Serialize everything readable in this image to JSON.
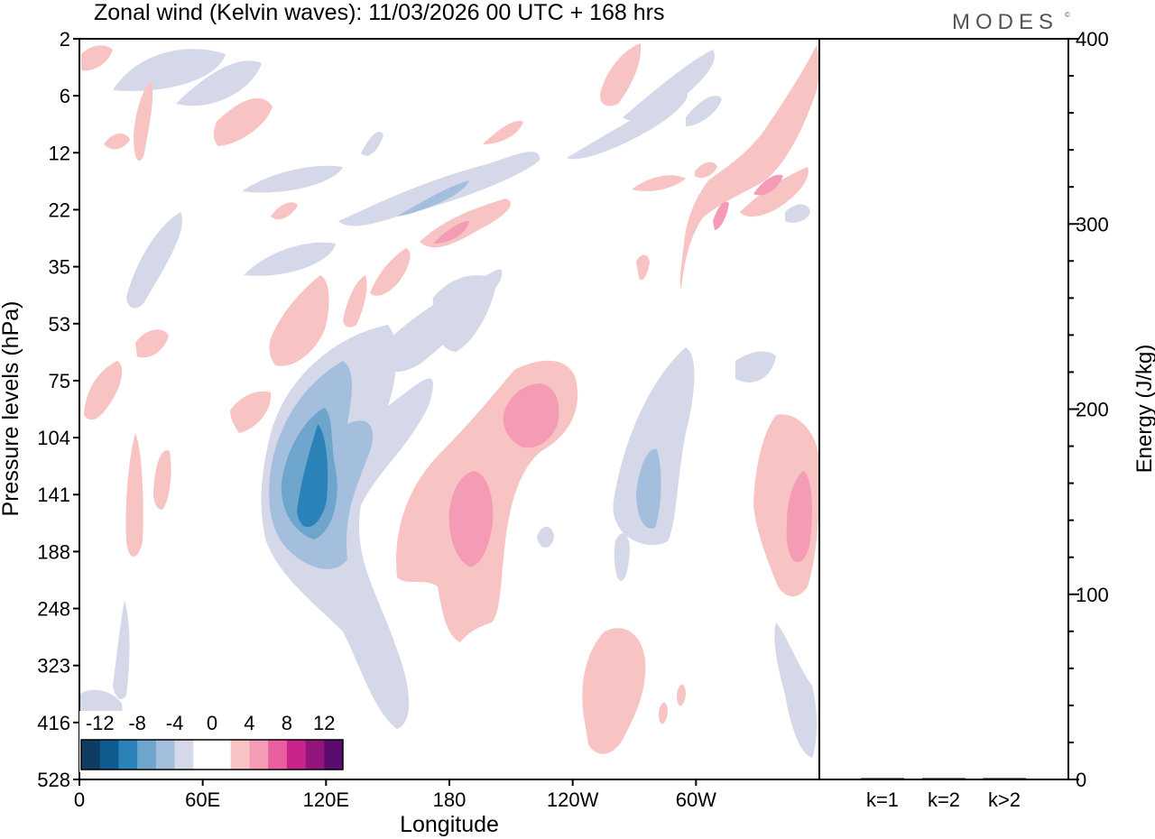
{
  "chart_data": {
    "type": "heatmap",
    "title": "Zonal wind (Kelvin waves):  11/03/2026  00 UTC  + 168 hrs",
    "brand": "MODES",
    "brand_mark": "©",
    "xlabel": "Longitude",
    "ylabel": "Pressure levels (hPa)",
    "x_ticks": [
      "0",
      "60E",
      "120E",
      "180",
      "120W",
      "60W"
    ],
    "y_ticks": [
      "2",
      "6",
      "12",
      "22",
      "35",
      "53",
      "75",
      "104",
      "141",
      "188",
      "248",
      "323",
      "416",
      "528"
    ],
    "colorbar": {
      "tick_labels": [
        "-12",
        "-8",
        "-4",
        "0",
        "4",
        "8",
        "12"
      ],
      "colors": [
        "#0e3c62",
        "#0e5b8f",
        "#2a82b8",
        "#6da5cd",
        "#a4bfdd",
        "#d4d8e8",
        "#ffffff",
        "#ffffff",
        "#f8c3c3",
        "#f49bb6",
        "#e95e9f",
        "#c8248a",
        "#93157b",
        "#5a0d6e"
      ]
    },
    "features": [
      {
        "sign": "negative",
        "lon": 106,
        "level": 141,
        "min_value": -12
      },
      {
        "sign": "positive",
        "lon": 189,
        "level": 141,
        "max_value": 8
      },
      {
        "sign": "positive",
        "lon": 206,
        "level": 95,
        "max_value": 8
      },
      {
        "sign": "negative",
        "lon": 282,
        "level": 141,
        "min_value": -8
      },
      {
        "sign": "positive",
        "lon": 342,
        "level": 150,
        "max_value": 8
      },
      {
        "sign": "positive",
        "lon": 243,
        "level": 380,
        "max_value": 4
      },
      {
        "sign": "negative",
        "lon": 160,
        "level": 20,
        "min_value": -8
      },
      {
        "sign": "positive",
        "lon": 183,
        "level": 25,
        "max_value": 8
      },
      {
        "sign": "positive",
        "lon": 322,
        "level": 19,
        "max_value": 8
      }
    ],
    "energy_panel": {
      "ylabel": "Energy (J/kg)",
      "ylim": [
        0,
        400
      ],
      "y_ticks": [
        "0",
        "100",
        "200",
        "300",
        "400"
      ],
      "categories": [
        "k=1",
        "k=2",
        "k>2"
      ],
      "values": [
        0,
        0.3,
        0.6
      ]
    }
  }
}
